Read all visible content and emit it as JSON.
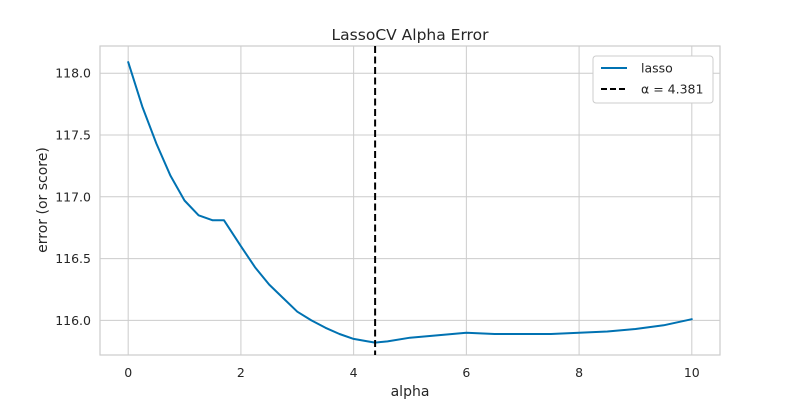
{
  "chart_data": {
    "type": "line",
    "title": "LassoCV Alpha Error",
    "xlabel": "alpha",
    "ylabel": "error (or score)",
    "xlim": [
      -0.5,
      10.5
    ],
    "ylim": [
      115.72,
      118.22
    ],
    "x_ticks": [
      0,
      2,
      4,
      6,
      8,
      10
    ],
    "x_tick_labels": [
      "0",
      "2",
      "4",
      "6",
      "8",
      "10"
    ],
    "y_ticks": [
      116.0,
      116.5,
      117.0,
      117.5,
      118.0
    ],
    "y_tick_labels": [
      "116.0",
      "116.5",
      "117.0",
      "117.5",
      "118.0"
    ],
    "grid": true,
    "legend_position": "top-right",
    "series": [
      {
        "name": "lasso",
        "color": "#0072b2",
        "x": [
          0,
          0.25,
          0.5,
          0.75,
          1.0,
          1.25,
          1.5,
          1.7,
          2.0,
          2.25,
          2.5,
          2.75,
          3.0,
          3.25,
          3.5,
          3.75,
          4.0,
          4.25,
          4.38,
          4.6,
          5.0,
          5.5,
          6.0,
          6.5,
          7.0,
          7.5,
          8.0,
          8.5,
          9.0,
          9.5,
          10.0
        ],
        "y": [
          118.09,
          117.73,
          117.43,
          117.17,
          116.97,
          116.85,
          116.81,
          116.81,
          116.6,
          116.43,
          116.29,
          116.18,
          116.07,
          116.0,
          115.94,
          115.89,
          115.85,
          115.83,
          115.82,
          115.83,
          115.86,
          115.88,
          115.9,
          115.89,
          115.89,
          115.89,
          115.9,
          115.91,
          115.93,
          115.96,
          116.01
        ]
      }
    ],
    "vline": {
      "x": 4.381,
      "label": "α = 4.381",
      "color": "#000000",
      "style": "dashed"
    }
  }
}
